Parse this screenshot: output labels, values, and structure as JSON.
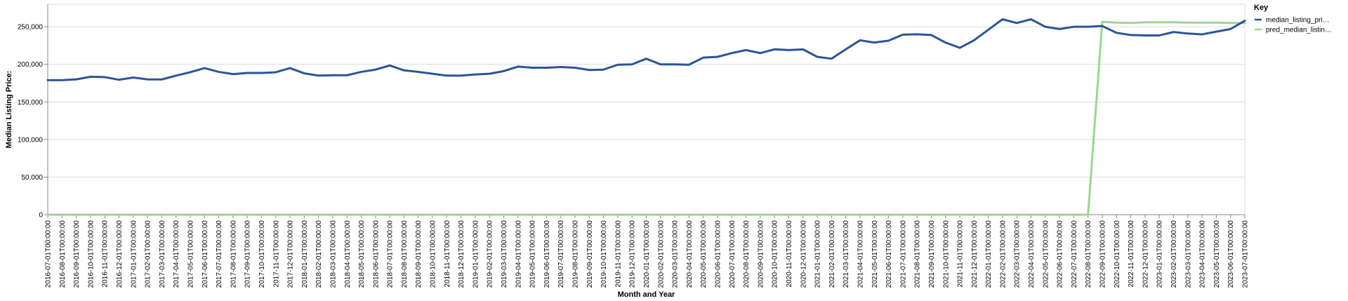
{
  "chart_data": {
    "type": "line",
    "xlabel": "Month and Year",
    "ylabel": "Median Listing Price:",
    "ylim": [
      0,
      280000
    ],
    "yticks": [
      0,
      50000,
      100000,
      150000,
      200000,
      250000
    ],
    "ytick_labels": [
      "0",
      "50,000",
      "100,000",
      "150,000",
      "200,000",
      "250,000"
    ],
    "grid": true,
    "legend_position": "top-right",
    "legend_title": "Key",
    "x": [
      "2016-07-01T00:00:00",
      "2016-08-01T00:00:00",
      "2016-09-01T00:00:00",
      "2016-10-01T00:00:00",
      "2016-11-01T00:00:00",
      "2016-12-01T00:00:00",
      "2017-01-01T00:00:00",
      "2017-02-01T00:00:00",
      "2017-03-01T00:00:00",
      "2017-04-01T00:00:00",
      "2017-05-01T00:00:00",
      "2017-06-01T00:00:00",
      "2017-07-01T00:00:00",
      "2017-08-01T00:00:00",
      "2017-09-01T00:00:00",
      "2017-10-01T00:00:00",
      "2017-11-01T00:00:00",
      "2017-12-01T00:00:00",
      "2018-01-01T00:00:00",
      "2018-02-01T00:00:00",
      "2018-03-01T00:00:00",
      "2018-04-01T00:00:00",
      "2018-05-01T00:00:00",
      "2018-06-01T00:00:00",
      "2018-07-01T00:00:00",
      "2018-08-01T00:00:00",
      "2018-09-01T00:00:00",
      "2018-10-01T00:00:00",
      "2018-11-01T00:00:00",
      "2018-12-01T00:00:00",
      "2019-01-01T00:00:00",
      "2019-02-01T00:00:00",
      "2019-03-01T00:00:00",
      "2019-04-01T00:00:00",
      "2019-05-01T00:00:00",
      "2019-06-01T00:00:00",
      "2019-07-01T00:00:00",
      "2019-08-01T00:00:00",
      "2019-09-01T00:00:00",
      "2019-10-01T00:00:00",
      "2019-11-01T00:00:00",
      "2019-12-01T00:00:00",
      "2020-01-01T00:00:00",
      "2020-02-01T00:00:00",
      "2020-03-01T00:00:00",
      "2020-04-01T00:00:00",
      "2020-05-01T00:00:00",
      "2020-06-01T00:00:00",
      "2020-07-01T00:00:00",
      "2020-08-01T00:00:00",
      "2020-09-01T00:00:00",
      "2020-10-01T00:00:00",
      "2020-11-01T00:00:00",
      "2020-12-01T00:00:00",
      "2021-01-01T00:00:00",
      "2021-02-01T00:00:00",
      "2021-03-01T00:00:00",
      "2021-04-01T00:00:00",
      "2021-05-01T00:00:00",
      "2021-06-01T00:00:00",
      "2021-07-01T00:00:00",
      "2021-08-01T00:00:00",
      "2021-09-01T00:00:00",
      "2021-10-01T00:00:00",
      "2021-11-01T00:00:00",
      "2021-12-01T00:00:00",
      "2022-01-01T00:00:00",
      "2022-02-01T00:00:00",
      "2022-03-01T00:00:00",
      "2022-04-01T00:00:00",
      "2022-05-01T00:00:00",
      "2022-06-01T00:00:00",
      "2022-07-01T00:00:00",
      "2022-08-01T00:00:00",
      "2022-09-01T00:00:00",
      "2022-10-01T00:00:00",
      "2022-11-01T00:00:00",
      "2022-12-01T00:00:00",
      "2023-01-01T00:00:00",
      "2023-02-01T00:00:00",
      "2023-03-01T00:00:00",
      "2023-04-01T00:00:00",
      "2023-05-01T00:00:00",
      "2023-06-01T00:00:00",
      "2023-07-01T00:00:00"
    ],
    "series": [
      {
        "name": "median_listing_pri…",
        "color": "#2a5599",
        "values": [
          179000,
          179000,
          180000,
          183500,
          183000,
          179500,
          182500,
          180000,
          179900,
          185000,
          189500,
          195000,
          190000,
          187000,
          188500,
          188500,
          189500,
          195000,
          188000,
          185000,
          185500,
          185500,
          190000,
          193000,
          198500,
          192000,
          190000,
          187500,
          185000,
          185000,
          186500,
          187500,
          191000,
          197000,
          195500,
          195500,
          196500,
          195500,
          192500,
          193000,
          199500,
          200000,
          207500,
          200000,
          200000,
          199500,
          209000,
          210000,
          215000,
          219000,
          215000,
          220000,
          219000,
          219900,
          210000,
          207500,
          220000,
          232000,
          229000,
          231500,
          239500,
          240000,
          239000,
          229000,
          222000,
          232000,
          246000,
          260000,
          255000,
          260000,
          250000,
          247000,
          250000,
          250000,
          251000,
          242000,
          239000,
          238500,
          238500,
          243000,
          241000,
          239900,
          243500,
          247000,
          258000
        ]
      },
      {
        "name": "pred_median_listin…",
        "color": "#98d88f",
        "values": [
          0,
          0,
          0,
          0,
          0,
          0,
          0,
          0,
          0,
          0,
          0,
          0,
          0,
          0,
          0,
          0,
          0,
          0,
          0,
          0,
          0,
          0,
          0,
          0,
          0,
          0,
          0,
          0,
          0,
          0,
          0,
          0,
          0,
          0,
          0,
          0,
          0,
          0,
          0,
          0,
          0,
          0,
          0,
          0,
          0,
          0,
          0,
          0,
          0,
          0,
          0,
          0,
          0,
          0,
          0,
          0,
          0,
          0,
          0,
          0,
          0,
          0,
          0,
          0,
          0,
          0,
          0,
          0,
          0,
          0,
          0,
          0,
          0,
          0,
          256500,
          255500,
          255000,
          256000,
          256000,
          256000,
          255500,
          255500,
          255500,
          255000,
          255000
        ]
      }
    ]
  }
}
